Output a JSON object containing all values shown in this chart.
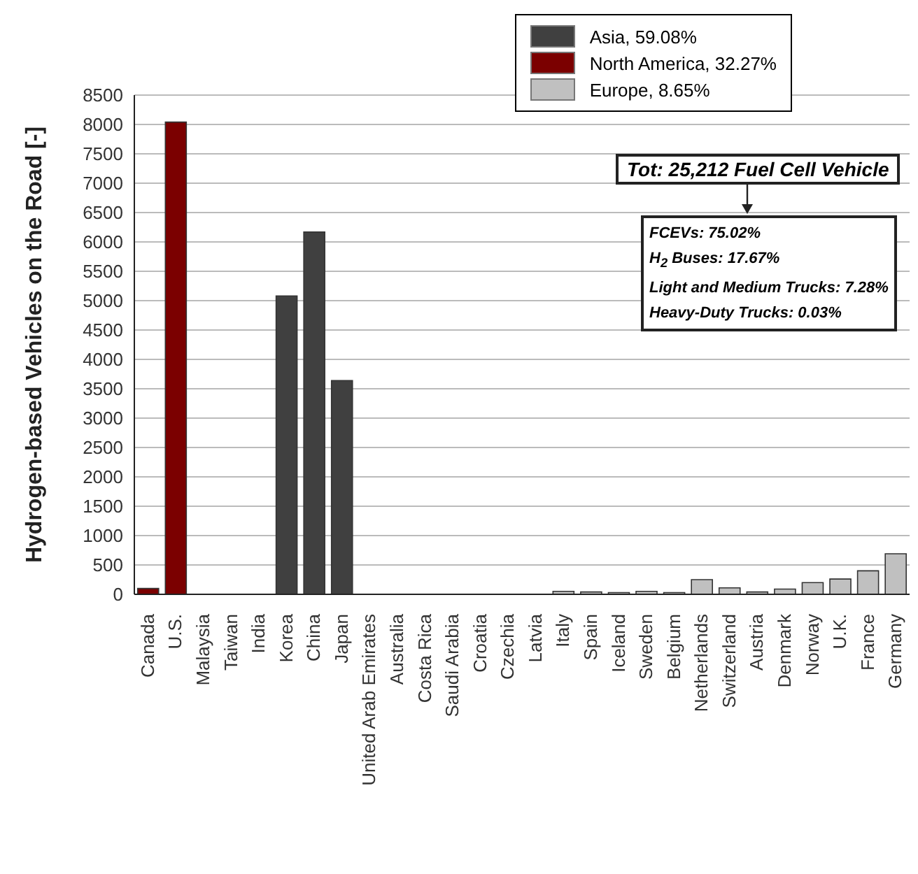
{
  "chart_data": {
    "type": "bar",
    "stacked": true,
    "ylabel": "Hydrogen-based Vehicles on the Road [-]",
    "categories": [
      "Canada",
      "U.S.",
      "Malaysia",
      "Taiwan",
      "India",
      "Korea",
      "China",
      "Japan",
      "United Arab Emirates",
      "Australia",
      "Costa Rica",
      "Saudi Arabia",
      "Croatia",
      "Czechia",
      "Latvia",
      "Italy",
      "Spain",
      "Iceland",
      "Sweden",
      "Belgium",
      "Netherlands",
      "Switzerland",
      "Austria",
      "Denmark",
      "Norway",
      "U.K.",
      "France",
      "Germany"
    ],
    "series": [
      {
        "name": "Asia, 59.08%",
        "color": "#404040",
        "values": [
          null,
          null,
          0,
          0,
          0,
          5080,
          6170,
          3640,
          0,
          0,
          null,
          0,
          null,
          null,
          null,
          null,
          null,
          null,
          null,
          null,
          null,
          null,
          null,
          null,
          null,
          null,
          null,
          null
        ]
      },
      {
        "name": "North America, 32.27%",
        "color": "#7b0000",
        "values": [
          100,
          8040,
          null,
          null,
          null,
          null,
          null,
          null,
          null,
          null,
          0,
          null,
          null,
          null,
          null,
          null,
          null,
          null,
          null,
          null,
          null,
          null,
          null,
          null,
          null,
          null,
          null,
          null
        ]
      },
      {
        "name": "Europe, 8.65%",
        "color": "#c0c0c0",
        "values": [
          null,
          null,
          null,
          null,
          null,
          null,
          null,
          null,
          null,
          null,
          null,
          null,
          0,
          0,
          0,
          50,
          40,
          30,
          50,
          30,
          250,
          110,
          40,
          90,
          200,
          260,
          400,
          690
        ]
      }
    ],
    "ylim": [
      0,
      8500
    ],
    "yticks": [
      0,
      500,
      1000,
      1500,
      2000,
      2500,
      3000,
      3500,
      4000,
      4500,
      5000,
      5500,
      6000,
      6500,
      7000,
      7500,
      8000,
      8500
    ],
    "grid": "y",
    "legend": "top right",
    "annotations": [
      "Tot: 25,212 Fuel Cell Vehicle",
      "FCEVs: 75.02%",
      "H$_{2}$ Buses: 17.67%",
      "Light and Medium Trucks: 7.28%",
      "Heavy-Duty Trucks: 0.03%"
    ]
  }
}
